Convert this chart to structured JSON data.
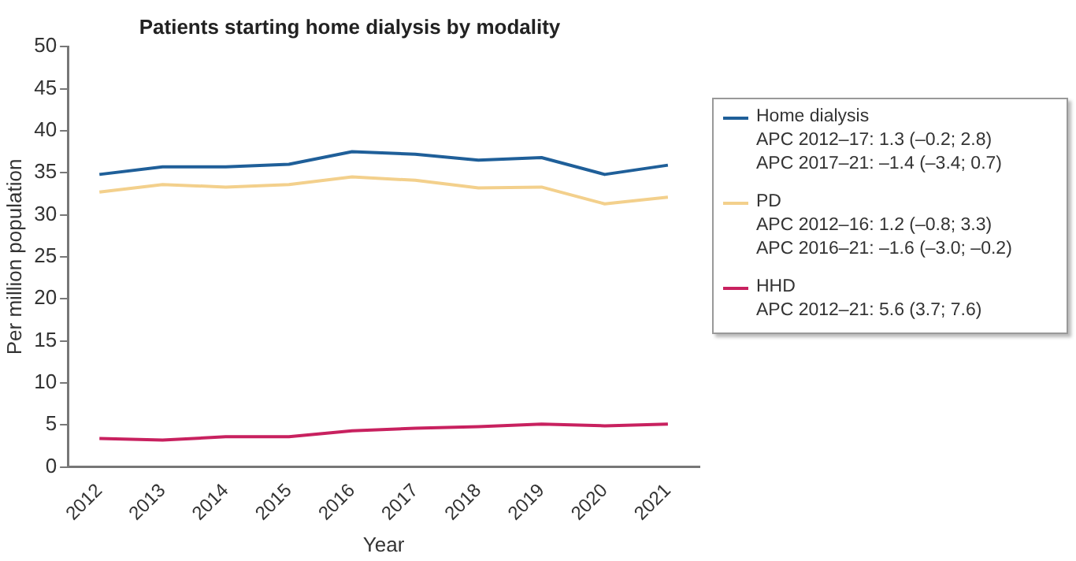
{
  "chart_data": {
    "type": "line",
    "title": "Patients starting home dialysis by modality",
    "xlabel": "Year",
    "ylabel": "Per million population",
    "categories": [
      "2012",
      "2013",
      "2014",
      "2015",
      "2016",
      "2017",
      "2018",
      "2019",
      "2020",
      "2021"
    ],
    "series": [
      {
        "name": "Home dialysis\nAPC 2012–17: 1.3 (–0.2; 2.8)\nAPC 2017–21: –1.4 (–3.4; 0.7)",
        "color": "#1f5f99",
        "values": [
          34.8,
          35.7,
          35.7,
          36.0,
          37.5,
          37.2,
          36.5,
          36.8,
          34.8,
          35.9
        ]
      },
      {
        "name": "PD\nAPC 2012–16: 1.2 (–0.8; 3.3)\nAPC 2016–21: –1.6 (–3.0; –0.2)",
        "color": "#f3d08c",
        "values": [
          32.7,
          33.6,
          33.3,
          33.6,
          34.5,
          34.1,
          33.2,
          33.3,
          31.3,
          32.1
        ]
      },
      {
        "name": "HHD\nAPC 2012–21: 5.6 (3.7; 7.6)",
        "color": "#c8215f",
        "values": [
          3.4,
          3.2,
          3.6,
          3.6,
          4.3,
          4.6,
          4.8,
          5.1,
          4.9,
          5.1
        ]
      }
    ],
    "ylim": [
      0,
      50
    ],
    "yticks": [
      0,
      5,
      10,
      15,
      20,
      25,
      30,
      35,
      40,
      45,
      50
    ],
    "grid": false,
    "legend": "right",
    "marker": "none",
    "line_style": "solid"
  }
}
